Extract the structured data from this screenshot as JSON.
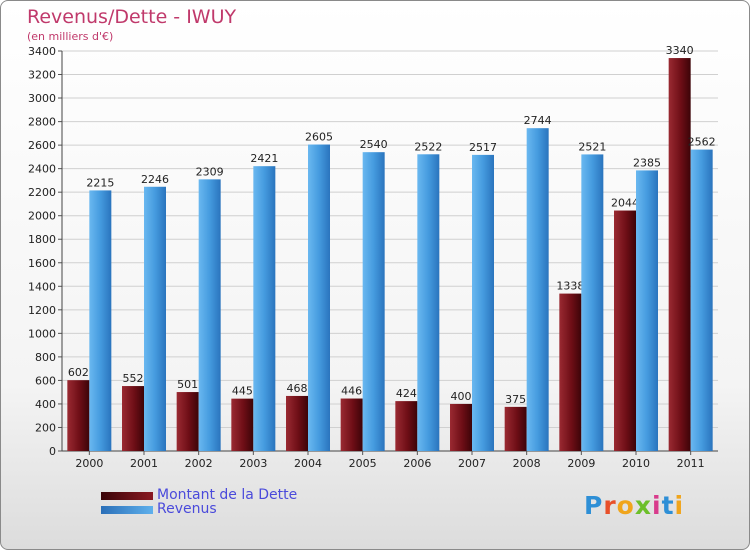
{
  "title": "Revenus/Dette - IWUY",
  "subtitle": "(en milliers d'€)",
  "legend": [
    {
      "label": "Montant de la Dette",
      "color": "#7a1018"
    },
    {
      "label": "Revenus",
      "color": "#3e93d8"
    }
  ],
  "logo": {
    "text": "Proxiti",
    "letters": [
      "P",
      "r",
      "o",
      "x",
      "i",
      "t",
      "i"
    ],
    "colors": [
      "#2e8fd6",
      "#e8502a",
      "#f0a51c",
      "#6cbf2a",
      "#d83b8c",
      "#2e8fd6",
      "#f0a51c"
    ]
  },
  "chart_data": {
    "type": "bar",
    "categories": [
      "2000",
      "2001",
      "2002",
      "2003",
      "2004",
      "2005",
      "2006",
      "2007",
      "2008",
      "2009",
      "2010",
      "2011"
    ],
    "series": [
      {
        "name": "Montant de la Dette",
        "color": "#7a1018",
        "values": [
          602,
          552,
          501,
          445,
          468,
          446,
          424,
          400,
          375,
          1338,
          2044,
          3340
        ]
      },
      {
        "name": "Revenus",
        "color": "#3e93d8",
        "values": [
          2215,
          2246,
          2309,
          2421,
          2605,
          2540,
          2522,
          2517,
          2744,
          2521,
          2385,
          2562
        ]
      }
    ],
    "ylim": [
      0,
      3400
    ],
    "yticks": [
      0,
      200,
      400,
      600,
      800,
      1000,
      1200,
      1400,
      1600,
      1800,
      2000,
      2200,
      2400,
      2600,
      2800,
      3000,
      3200,
      3400
    ],
    "grid": true,
    "legend_position": "bottom-left"
  }
}
